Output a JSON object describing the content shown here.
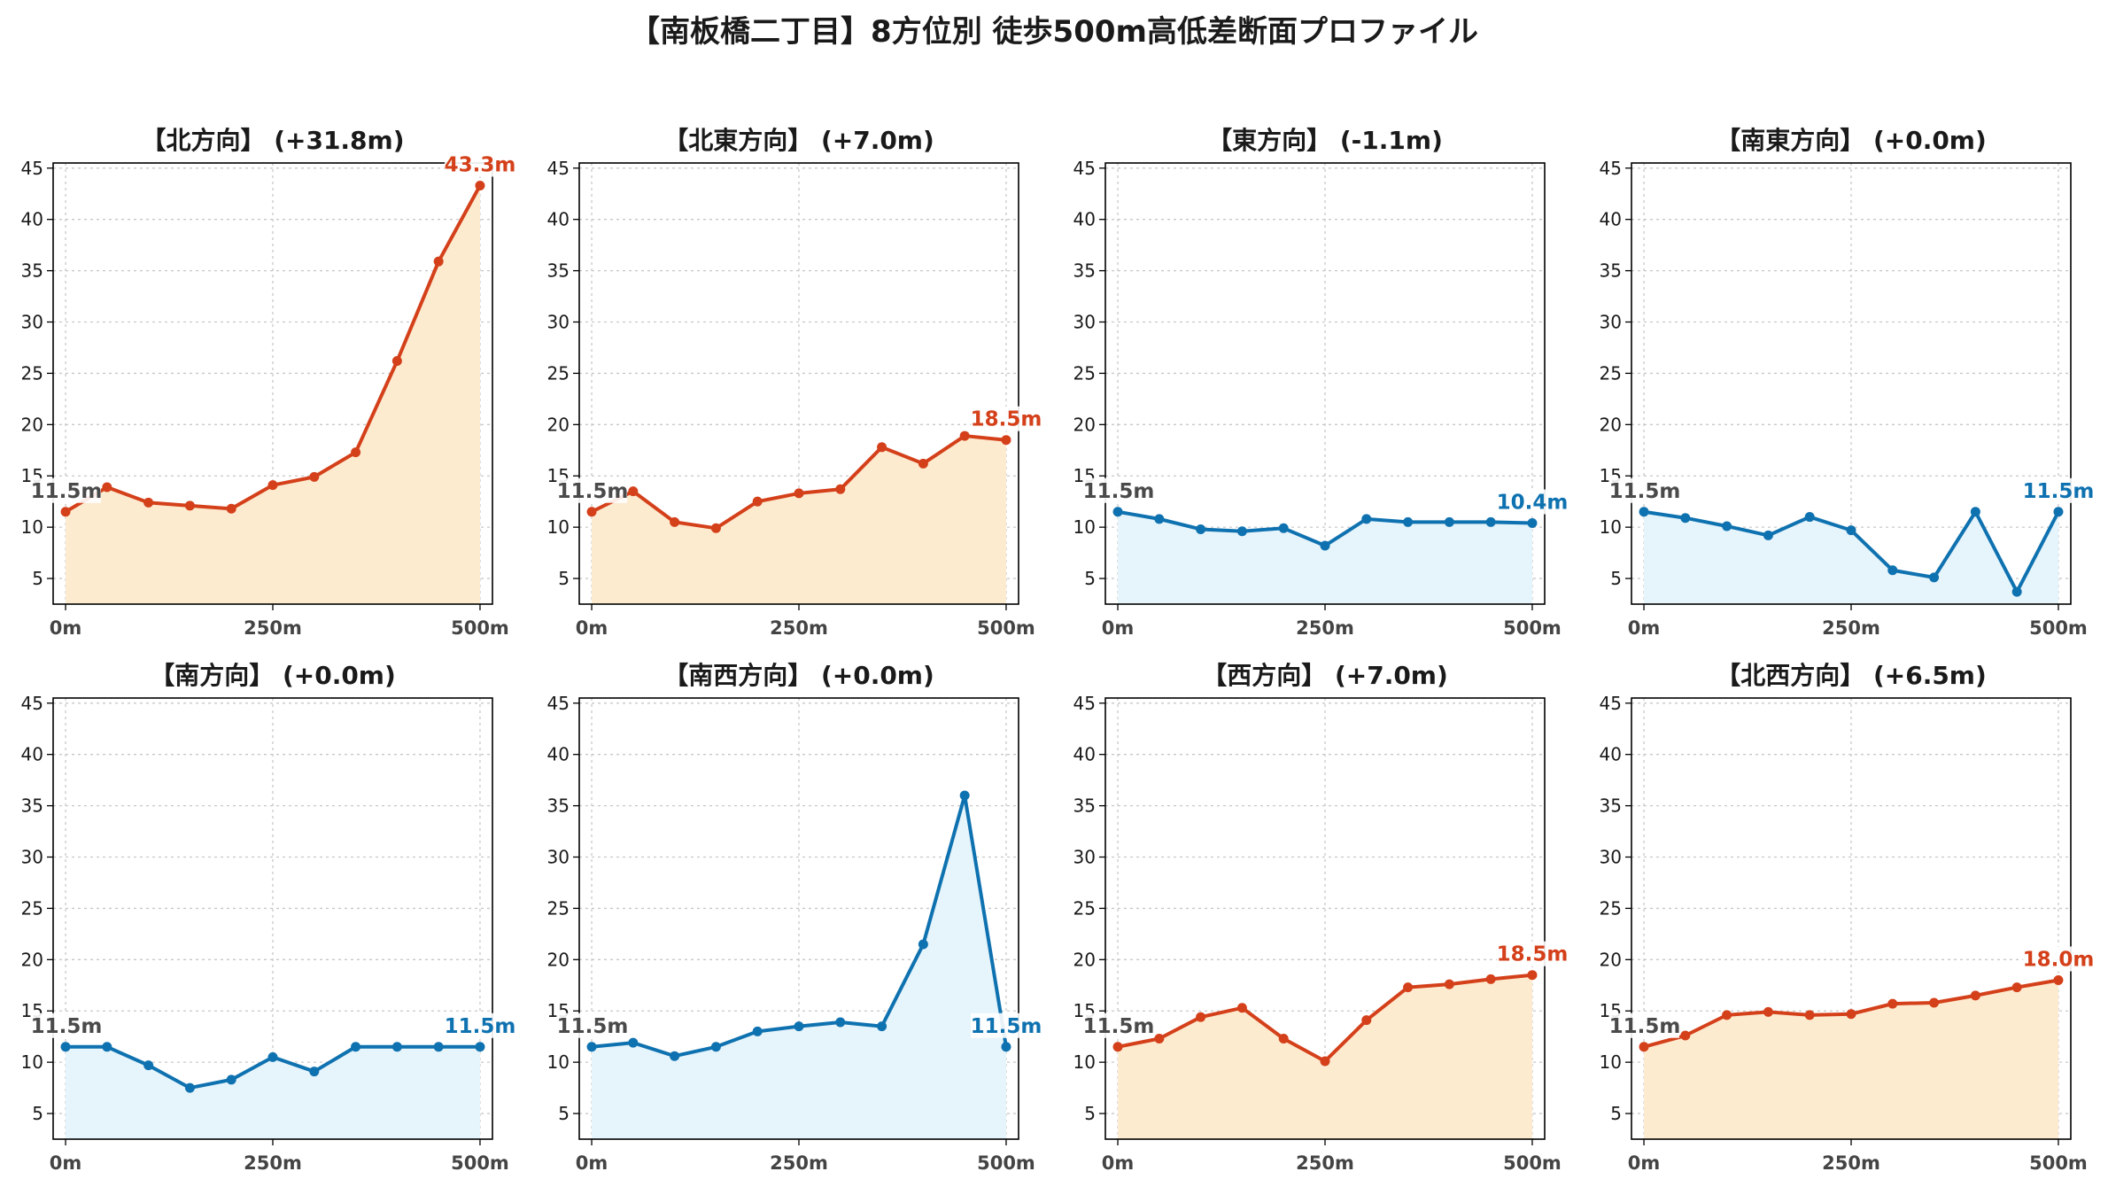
{
  "title": "【南板橋二丁目】8方位別 徒歩500m高低差断面プロファイル",
  "colors": {
    "up_line": "#d4401a",
    "up_fill": "#fdebd0",
    "down_line": "#0f72b0",
    "down_fill": "#e6f4fb",
    "start_label": "#4a4a4a",
    "grid": "#c8c8c8"
  },
  "chart_data": [
    {
      "type": "area",
      "title": "【北方向】 (+31.8m)",
      "trend": "up",
      "x": [
        0,
        50,
        100,
        150,
        200,
        250,
        300,
        350,
        400,
        450,
        500
      ],
      "y": [
        11.5,
        13.9,
        12.4,
        12.1,
        11.8,
        14.1,
        14.9,
        17.3,
        26.2,
        35.9,
        43.3
      ],
      "xticks": [
        "0m",
        "250m",
        "500m"
      ],
      "yticks": [
        5,
        10,
        15,
        20,
        25,
        30,
        35,
        40,
        45
      ],
      "ylim": [
        2.5,
        45.5
      ],
      "xlim": [
        -15,
        515
      ],
      "start_label": "11.5m",
      "end_label": "43.3m",
      "grid": true
    },
    {
      "type": "area",
      "title": "【北東方向】 (+7.0m)",
      "trend": "up",
      "x": [
        0,
        50,
        100,
        150,
        200,
        250,
        300,
        350,
        400,
        450,
        500
      ],
      "y": [
        11.5,
        13.5,
        10.5,
        9.9,
        12.5,
        13.3,
        13.7,
        17.8,
        16.2,
        18.9,
        18.5
      ],
      "xticks": [
        "0m",
        "250m",
        "500m"
      ],
      "yticks": [
        5,
        10,
        15,
        20,
        25,
        30,
        35,
        40,
        45
      ],
      "ylim": [
        2.5,
        45.5
      ],
      "xlim": [
        -15,
        515
      ],
      "start_label": "11.5m",
      "end_label": "18.5m",
      "grid": true
    },
    {
      "type": "area",
      "title": "【東方向】 (-1.1m)",
      "trend": "down",
      "x": [
        0,
        50,
        100,
        150,
        200,
        250,
        300,
        350,
        400,
        450,
        500
      ],
      "y": [
        11.5,
        10.8,
        9.8,
        9.6,
        9.9,
        8.2,
        10.8,
        10.5,
        10.5,
        10.5,
        10.4
      ],
      "xticks": [
        "0m",
        "250m",
        "500m"
      ],
      "yticks": [
        5,
        10,
        15,
        20,
        25,
        30,
        35,
        40,
        45
      ],
      "ylim": [
        2.5,
        45.5
      ],
      "xlim": [
        -15,
        515
      ],
      "start_label": "11.5m",
      "end_label": "10.4m",
      "grid": true
    },
    {
      "type": "area",
      "title": "【南東方向】 (+0.0m)",
      "trend": "down",
      "x": [
        0,
        50,
        100,
        150,
        200,
        250,
        300,
        350,
        400,
        450,
        500
      ],
      "y": [
        11.5,
        10.9,
        10.1,
        9.2,
        11.0,
        9.7,
        5.8,
        5.1,
        11.5,
        3.7,
        11.5
      ],
      "xticks": [
        "0m",
        "250m",
        "500m"
      ],
      "yticks": [
        5,
        10,
        15,
        20,
        25,
        30,
        35,
        40,
        45
      ],
      "ylim": [
        2.5,
        45.5
      ],
      "xlim": [
        -15,
        515
      ],
      "start_label": "11.5m",
      "end_label": "11.5m",
      "grid": true
    },
    {
      "type": "area",
      "title": "【南方向】 (+0.0m)",
      "trend": "down",
      "x": [
        0,
        50,
        100,
        150,
        200,
        250,
        300,
        350,
        400,
        450,
        500
      ],
      "y": [
        11.5,
        11.5,
        9.7,
        7.5,
        8.3,
        10.5,
        9.1,
        11.5,
        11.5,
        11.5,
        11.5
      ],
      "xticks": [
        "0m",
        "250m",
        "500m"
      ],
      "yticks": [
        5,
        10,
        15,
        20,
        25,
        30,
        35,
        40,
        45
      ],
      "ylim": [
        2.5,
        45.5
      ],
      "xlim": [
        -15,
        515
      ],
      "start_label": "11.5m",
      "end_label": "11.5m",
      "grid": true
    },
    {
      "type": "area",
      "title": "【南西方向】 (+0.0m)",
      "trend": "down",
      "x": [
        0,
        50,
        100,
        150,
        200,
        250,
        300,
        350,
        400,
        450,
        500
      ],
      "y": [
        11.5,
        11.9,
        10.6,
        11.5,
        13.0,
        13.5,
        13.9,
        13.5,
        21.5,
        36.0,
        11.5
      ],
      "xticks": [
        "0m",
        "250m",
        "500m"
      ],
      "yticks": [
        5,
        10,
        15,
        20,
        25,
        30,
        35,
        40,
        45
      ],
      "ylim": [
        2.5,
        45.5
      ],
      "xlim": [
        -15,
        515
      ],
      "start_label": "11.5m",
      "end_label": "11.5m",
      "grid": true
    },
    {
      "type": "area",
      "title": "【西方向】 (+7.0m)",
      "trend": "up",
      "x": [
        0,
        50,
        100,
        150,
        200,
        250,
        300,
        350,
        400,
        450,
        500
      ],
      "y": [
        11.5,
        12.3,
        14.4,
        15.3,
        12.3,
        10.1,
        14.1,
        17.3,
        17.6,
        18.1,
        18.5
      ],
      "xticks": [
        "0m",
        "250m",
        "500m"
      ],
      "yticks": [
        5,
        10,
        15,
        20,
        25,
        30,
        35,
        40,
        45
      ],
      "ylim": [
        2.5,
        45.5
      ],
      "xlim": [
        -15,
        515
      ],
      "start_label": "11.5m",
      "end_label": "18.5m",
      "grid": true
    },
    {
      "type": "area",
      "title": "【北西方向】 (+6.5m)",
      "trend": "up",
      "x": [
        0,
        50,
        100,
        150,
        200,
        250,
        300,
        350,
        400,
        450,
        500
      ],
      "y": [
        11.5,
        12.6,
        14.6,
        14.9,
        14.6,
        14.7,
        15.7,
        15.8,
        16.5,
        17.3,
        18.0
      ],
      "xticks": [
        "0m",
        "250m",
        "500m"
      ],
      "yticks": [
        5,
        10,
        15,
        20,
        25,
        30,
        35,
        40,
        45
      ],
      "ylim": [
        2.5,
        45.5
      ],
      "xlim": [
        -15,
        515
      ],
      "start_label": "11.5m",
      "end_label": "18.0m",
      "grid": true
    }
  ]
}
